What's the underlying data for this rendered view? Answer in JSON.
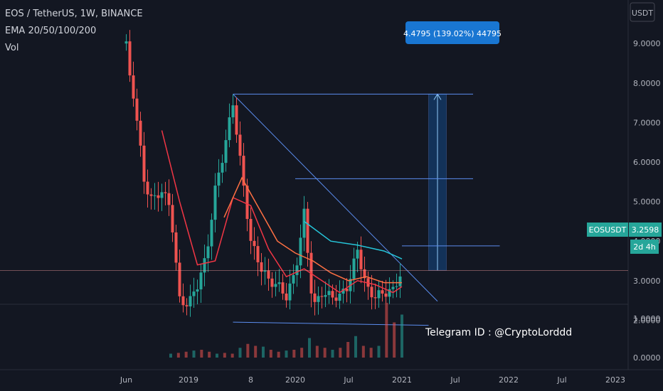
{
  "legend": {
    "title": "EOS / TetherUS, 1W, BINANCE",
    "ema": "EMA 20/50/100/200",
    "vol": "Vol"
  },
  "currency": "USDT",
  "price_tag": {
    "symbol": "EOSUSDT",
    "price": "3.2598",
    "countdown": "2d 4h"
  },
  "measure_label": "4.4795 (139.02%) 44795",
  "annotation": "Telegram ID : @CryptoLorddd",
  "colors": {
    "background": "#131722",
    "up": "#26a69a",
    "down": "#ef5350",
    "ema20": "#f23645",
    "ema50": "#ff7043",
    "ema200": "#26c6da",
    "drawing": "#5b8def",
    "measure": "#1565c0"
  },
  "chart_data": {
    "type": "candlestick",
    "symbol": "EOSUSDT",
    "exchange": "BINANCE",
    "interval": "1W",
    "y_ticks": [
      "9.0000",
      "8.0000",
      "7.0000",
      "6.0000",
      "5.0000",
      "4.0000",
      "3.0000",
      "2.0000"
    ],
    "vol_ticks": [
      "1.0000",
      "0.0000"
    ],
    "ylim": [
      1.3,
      9.0
    ],
    "x_labels": [
      "Jun",
      "2019",
      "8",
      "2020",
      "Jul",
      "2021",
      "Jul",
      "2022",
      "Jul",
      "2023"
    ],
    "grid": false,
    "price_line": 3.2598,
    "price_path": [
      [
        "2018-06",
        9.0
      ],
      [
        "2018-06",
        8.5
      ],
      [
        "2018-07",
        7.5
      ],
      [
        "2018-08",
        5.5
      ],
      [
        "2018-09",
        5.0
      ],
      [
        "2018-10",
        5.3
      ],
      [
        "2018-11",
        4.8
      ],
      [
        "2018-12",
        2.5
      ],
      [
        "2019-01",
        2.4
      ],
      [
        "2019-02",
        2.9
      ],
      [
        "2019-03",
        3.6
      ],
      [
        "2019-04",
        5.3
      ],
      [
        "2019-05",
        6.3
      ],
      [
        "2019-06",
        7.5
      ],
      [
        "2019-07",
        5.7
      ],
      [
        "2019-08",
        4.0
      ],
      [
        "2019-09",
        3.4
      ],
      [
        "2019-10",
        3.0
      ],
      [
        "2019-11",
        2.9
      ],
      [
        "2019-12",
        2.6
      ],
      [
        "2020-01",
        3.2
      ],
      [
        "2020-02",
        4.7
      ],
      [
        "2020-03",
        2.3
      ],
      [
        "2020-04",
        2.7
      ],
      [
        "2020-05",
        2.6
      ],
      [
        "2020-06",
        2.6
      ],
      [
        "2020-07",
        2.9
      ],
      [
        "2020-08",
        3.8
      ],
      [
        "2020-09",
        2.8
      ],
      [
        "2020-10",
        2.6
      ],
      [
        "2020-11",
        2.7
      ],
      [
        "2020-12",
        2.75
      ],
      [
        "2021-01",
        3.26
      ]
    ],
    "ema_paths": [
      {
        "name": "EMA 20",
        "points": [
          [
            "2018-10",
            6.8
          ],
          [
            "2018-12",
            5.0
          ],
          [
            "2019-02",
            3.4
          ],
          [
            "2019-04",
            3.5
          ],
          [
            "2019-06",
            5.1
          ],
          [
            "2019-08",
            4.9
          ],
          [
            "2019-10",
            3.8
          ],
          [
            "2019-12",
            3.1
          ],
          [
            "2020-02",
            3.3
          ],
          [
            "2020-04",
            3.0
          ],
          [
            "2020-06",
            2.7
          ],
          [
            "2020-08",
            3.0
          ],
          [
            "2020-10",
            2.9
          ],
          [
            "2020-12",
            2.7
          ],
          [
            "2021-01",
            2.85
          ]
        ]
      },
      {
        "name": "EMA 50",
        "points": [
          [
            "2019-05",
            4.6
          ],
          [
            "2019-07",
            5.6
          ],
          [
            "2019-09",
            4.8
          ],
          [
            "2019-11",
            4.0
          ],
          [
            "2020-01",
            3.7
          ],
          [
            "2020-03",
            3.5
          ],
          [
            "2020-05",
            3.2
          ],
          [
            "2020-07",
            3.0
          ],
          [
            "2020-09",
            3.1
          ],
          [
            "2020-11",
            2.95
          ],
          [
            "2021-01",
            2.95
          ]
        ]
      },
      {
        "name": "EMA 200",
        "points": [
          [
            "2020-02",
            4.5
          ],
          [
            "2020-05",
            4.0
          ],
          [
            "2020-08",
            3.9
          ],
          [
            "2020-11",
            3.75
          ],
          [
            "2021-01",
            3.55
          ]
        ]
      }
    ],
    "drawings": [
      {
        "type": "horizontal",
        "from": "2019-06",
        "to": "2021-09",
        "y": 7.72
      },
      {
        "type": "horizontal",
        "from": "2020-01",
        "to": "2021-09",
        "y": 5.58
      },
      {
        "type": "horizontal",
        "from": "2021-01",
        "to": "2021-12",
        "y": 3.88
      },
      {
        "type": "trendline",
        "from": [
          "2019-06",
          7.72
        ],
        "to": [
          "2021-05",
          2.48
        ]
      },
      {
        "type": "trendline",
        "from": [
          "2019-06",
          1.95
        ],
        "to": [
          "2021-04",
          1.87
        ]
      }
    ],
    "measure": {
      "from": "2021-04",
      "to": "2021-06",
      "y_low": 3.26,
      "y_high": 7.72
    },
    "volume_path": [
      0.1,
      0.12,
      0.15,
      0.18,
      0.2,
      0.15,
      0.1,
      0.12,
      0.1,
      0.25,
      0.35,
      0.3,
      0.28,
      0.2,
      0.15,
      0.18,
      0.2,
      0.25,
      0.5,
      0.3,
      0.25,
      0.2,
      0.25,
      0.4,
      0.55,
      0.3,
      0.25,
      0.3,
      1.4,
      0.9,
      1.1
    ]
  }
}
